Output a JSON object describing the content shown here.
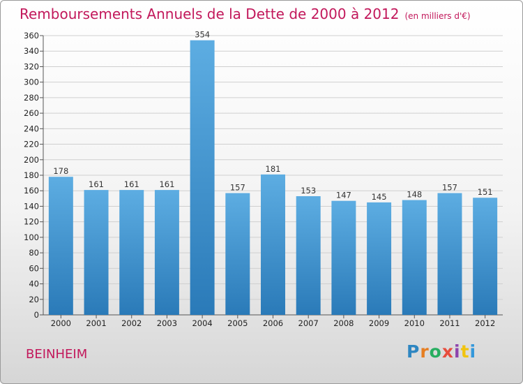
{
  "title": "Remboursements Annuels de la Dette de 2000 à 2012",
  "unit": "(en milliers d'€)",
  "commune": "BEINHEIM",
  "logo": {
    "text": "Proxiti",
    "letter_colors": [
      "#2e86c1",
      "#e67e22",
      "#27ae60",
      "#e74c3c",
      "#8e44ad",
      "#f1c40f",
      "#3498db"
    ]
  },
  "colors": {
    "title": "#c2185b",
    "bar_top": "#5dade2",
    "bar_bottom": "#2a7ab8",
    "grid": "#cfcfcf"
  },
  "chart_data": {
    "type": "bar",
    "categories": [
      "2000",
      "2001",
      "2002",
      "2003",
      "2004",
      "2005",
      "2006",
      "2007",
      "2008",
      "2009",
      "2010",
      "2011",
      "2012"
    ],
    "values": [
      178,
      161,
      161,
      161,
      354,
      157,
      181,
      153,
      147,
      145,
      148,
      157,
      151
    ],
    "ylim": [
      0,
      360
    ],
    "yticks": [
      0,
      20,
      40,
      60,
      80,
      100,
      120,
      140,
      160,
      180,
      200,
      220,
      240,
      260,
      280,
      300,
      320,
      340,
      360
    ],
    "grid": true,
    "legend": "none"
  }
}
